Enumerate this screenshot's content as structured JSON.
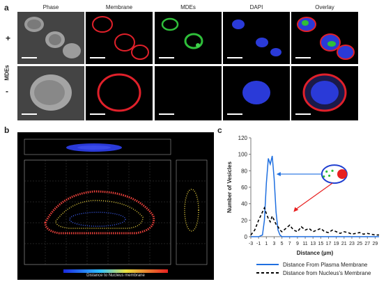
{
  "panel_a": {
    "letter": "a",
    "columns": [
      "Phase",
      "Membrane",
      "MDEs",
      "DAPI",
      "Overlay"
    ],
    "rows": [
      "+",
      "-"
    ],
    "row_axis_label": "MDEs"
  },
  "panel_b": {
    "letter": "b",
    "colorbar_label": "Distance to Nucleus membrane"
  },
  "panel_c": {
    "letter": "c"
  },
  "colors": {
    "membrane_red": "#e0202a",
    "mdes_green": "#2fbf3a",
    "dapi_blue": "#2a3ad8",
    "plasma_line": "#1f6fe0",
    "nucleus_line": "#000000"
  },
  "chart_data": {
    "type": "line",
    "x": [
      -3,
      -2,
      -1,
      0,
      0.5,
      1,
      1.5,
      2,
      2.5,
      3,
      3.5,
      4,
      4.5,
      5,
      6,
      7,
      8,
      9,
      10,
      11,
      12,
      13,
      14,
      15,
      16,
      17,
      18,
      19,
      20,
      21,
      22,
      23,
      24,
      25,
      26,
      27,
      28,
      29,
      30
    ],
    "series": [
      {
        "name": "Distance From Plasma Membrane",
        "values": [
          0,
          0,
          0,
          2,
          20,
          65,
          95,
          88,
          98,
          70,
          30,
          8,
          2,
          0,
          0,
          0,
          0,
          0,
          0,
          0,
          0,
          0,
          0,
          0,
          0,
          0,
          0,
          0,
          0,
          0,
          0,
          0,
          0,
          0,
          0,
          0,
          0,
          0,
          0
        ]
      },
      {
        "name": "Distance from Nucleus's Membrane",
        "values": [
          2,
          8,
          20,
          30,
          35,
          28,
          22,
          18,
          25,
          20,
          15,
          12,
          8,
          6,
          10,
          14,
          8,
          6,
          12,
          8,
          10,
          6,
          8,
          10,
          6,
          5,
          8,
          6,
          4,
          6,
          5,
          3,
          4,
          5,
          3,
          4,
          3,
          2,
          2
        ]
      }
    ],
    "xlabel": "Distance (µm)",
    "ylabel": "Number of Vesicles",
    "xlim": [
      -3,
      30
    ],
    "ylim": [
      0,
      120
    ],
    "yticks": [
      0,
      20,
      40,
      60,
      80,
      100,
      120
    ],
    "xticks": [
      -3,
      -1,
      1,
      3,
      5,
      7,
      9,
      11,
      13,
      15,
      17,
      19,
      21,
      23,
      25,
      27,
      29
    ],
    "grid": false,
    "legend": "bottom"
  }
}
